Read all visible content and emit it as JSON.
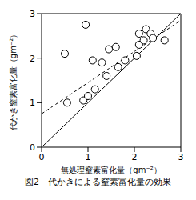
{
  "chart_data": {
    "type": "scatter",
    "title": "図2　代かきによる窒素富化量の効果",
    "x_label": "無処理窒素富化量（gm⁻²）",
    "y_label": "代かき窒素富化量（gm⁻²）",
    "xlim": [
      0,
      3
    ],
    "ylim": [
      0,
      3
    ],
    "xticks": [
      0,
      1,
      2,
      3
    ],
    "yticks": [
      0,
      1,
      2,
      3
    ],
    "color": "#000000",
    "marker": "circle",
    "points": {
      "x": [
        0.5,
        0.55,
        0.9,
        0.95,
        1.0,
        1.1,
        1.15,
        1.3,
        1.4,
        1.45,
        1.6,
        1.65,
        1.8,
        2.05,
        2.1,
        2.1,
        2.2,
        2.25,
        2.35,
        2.4,
        2.65
      ],
      "y": [
        2.1,
        1.0,
        1.05,
        2.75,
        1.15,
        1.95,
        1.3,
        1.9,
        1.6,
        2.2,
        2.25,
        1.8,
        1.95,
        2.05,
        2.3,
        2.55,
        2.4,
        2.65,
        2.55,
        2.45,
        2.4
      ]
    },
    "lines": [
      {
        "x": [
          0,
          3
        ],
        "y": [
          0,
          3
        ],
        "line_style": "solid"
      },
      {
        "x": [
          0,
          3
        ],
        "y": [
          0.75,
          2.85
        ],
        "line_style": "dashed"
      }
    ]
  }
}
